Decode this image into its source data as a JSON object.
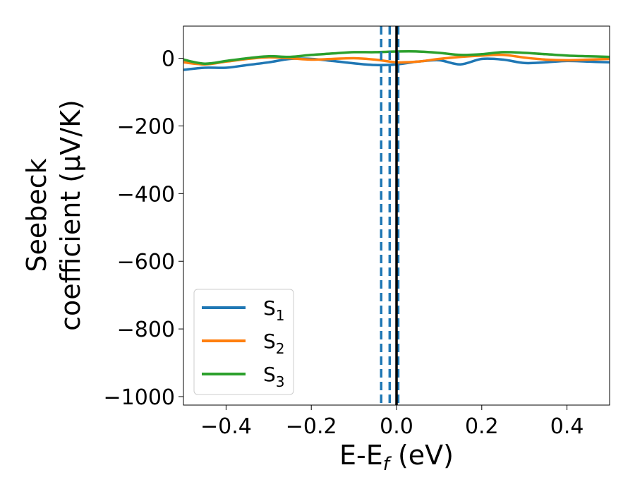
{
  "chart_data": {
    "type": "line",
    "xlabel": "E-E",
    "xlabel_sub": "f",
    "xlabel_unit": " (eV)",
    "ylabel_line1": "Seebeck",
    "ylabel_line2": "coefficient  (μV/K)",
    "xlim": [
      -0.5,
      0.5
    ],
    "ylim": [
      -1025,
      95
    ],
    "xticks": [
      -0.4,
      -0.2,
      0.0,
      0.2,
      0.4
    ],
    "xtick_labels": [
      "−0.4",
      "−0.2",
      "0.0",
      "0.2",
      "0.4"
    ],
    "yticks": [
      0,
      -200,
      -400,
      -600,
      -800,
      -1000
    ],
    "ytick_labels": [
      "0",
      "−200",
      "−400",
      "−600",
      "−800",
      "−1000"
    ],
    "grid": false,
    "legend_position": "lower-left",
    "vlines": [
      {
        "x": -0.036,
        "style": "dashed",
        "color": "#1f77b4"
      },
      {
        "x": -0.016,
        "style": "dashed",
        "color": "#1f77b4"
      },
      {
        "x": 0.004,
        "style": "dashed",
        "color": "#1f77b4"
      },
      {
        "x": 0.0,
        "style": "solid",
        "color": "#000000"
      }
    ],
    "series": [
      {
        "name": "S",
        "sub": "1",
        "color": "#1f77b4",
        "x": [
          -0.5,
          -0.45,
          -0.4,
          -0.35,
          -0.3,
          -0.25,
          -0.2,
          -0.15,
          -0.1,
          -0.05,
          0.0,
          0.05,
          0.1,
          0.15,
          0.2,
          0.25,
          0.3,
          0.35,
          0.4,
          0.45,
          0.5
        ],
        "y": [
          -34,
          -28,
          -28,
          -20,
          -12,
          -2,
          -2,
          -8,
          -15,
          -20,
          -18,
          -10,
          -6,
          -18,
          -2,
          -4,
          -14,
          -12,
          -8,
          -10,
          -12
        ]
      },
      {
        "name": "S",
        "sub": "2",
        "color": "#ff7f0e",
        "x": [
          -0.5,
          -0.45,
          -0.4,
          -0.35,
          -0.3,
          -0.25,
          -0.2,
          -0.15,
          -0.1,
          -0.05,
          0.0,
          0.05,
          0.1,
          0.15,
          0.2,
          0.25,
          0.3,
          0.35,
          0.4,
          0.45,
          0.5
        ],
        "y": [
          -12,
          -18,
          -10,
          -2,
          3,
          0,
          -4,
          -2,
          0,
          -4,
          -12,
          -10,
          -2,
          4,
          8,
          10,
          2,
          -4,
          -6,
          -4,
          -2
        ]
      },
      {
        "name": "S",
        "sub": "3",
        "color": "#2ca02c",
        "x": [
          -0.5,
          -0.45,
          -0.4,
          -0.35,
          -0.3,
          -0.25,
          -0.2,
          -0.15,
          -0.1,
          -0.05,
          0.0,
          0.05,
          0.1,
          0.15,
          0.2,
          0.25,
          0.3,
          0.35,
          0.4,
          0.45,
          0.5
        ],
        "y": [
          -4,
          -16,
          -8,
          0,
          6,
          4,
          10,
          14,
          18,
          18,
          20,
          20,
          16,
          10,
          12,
          18,
          16,
          12,
          8,
          6,
          4
        ]
      }
    ]
  }
}
